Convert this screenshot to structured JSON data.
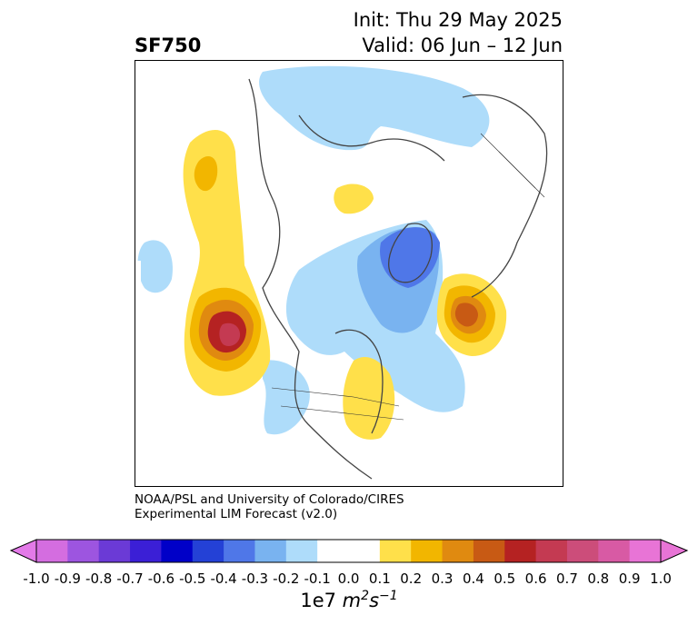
{
  "title": {
    "variable": "SF750",
    "type": "Anomaly",
    "init": "Init: Thu 29 May 2025",
    "valid": "Valid: 06 Jun – 12 Jun"
  },
  "credit": {
    "line1": "NOAA/PSL and University of Colorado/CIRES",
    "line2": "Experimental LIM Forecast (v2.0)"
  },
  "colorbar": {
    "label_base": "1e7 ",
    "label_unit_m": "m",
    "label_unit_m_exp": "2",
    "label_unit_s": "s",
    "label_unit_s_exp": "−1",
    "ticks": [
      "-1.0",
      "-0.9",
      "-0.8",
      "-0.7",
      "-0.6",
      "-0.5",
      "-0.4",
      "-0.3",
      "-0.2",
      "-0.1",
      "0.0",
      "0.1",
      "0.2",
      "0.3",
      "0.4",
      "0.5",
      "0.6",
      "0.7",
      "0.8",
      "0.9",
      "1.0"
    ],
    "colors": [
      "#d46de0",
      "#9d55e0",
      "#6b3ad6",
      "#3b1fd6",
      "#0000c8",
      "#2441d6",
      "#4f77e8",
      "#79b3f0",
      "#aedcfa",
      "#ffffff",
      "#ffffff",
      "#ffe04a",
      "#f2b600",
      "#e08a10",
      "#c85a14",
      "#b52222",
      "#c43a52",
      "#cc4d7a",
      "#d85aa4",
      "#e874d6"
    ],
    "under_color": "#e37ae8",
    "over_color": "#e874d6"
  }
}
